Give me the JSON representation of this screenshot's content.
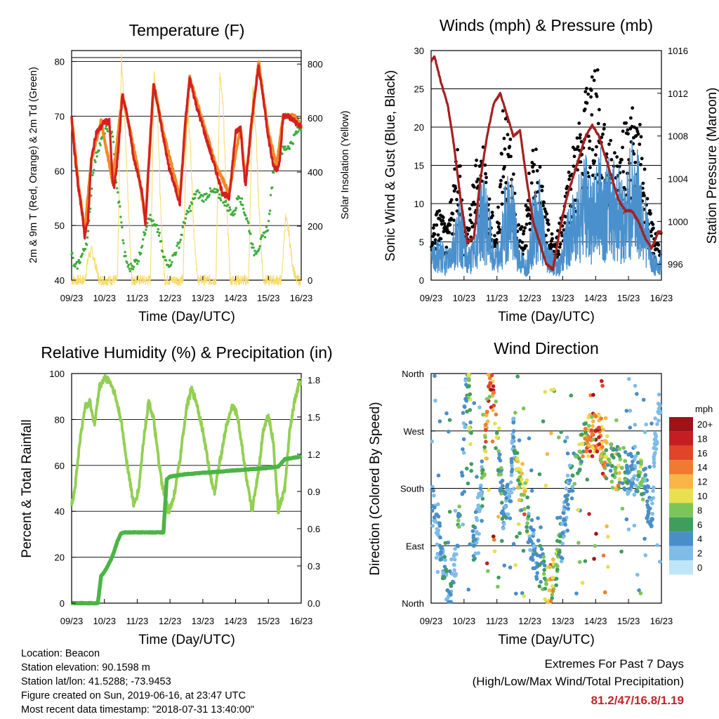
{
  "x_ticks": [
    "09/23",
    "10/23",
    "11/23",
    "12/23",
    "13/23",
    "14/23",
    "15/23",
    "16/23"
  ],
  "panels": {
    "temperature": {
      "title": "Temperature (F)",
      "xlabel": "Time (Day/UTC)",
      "ylabel_left": "2m & 9m T (Red, Orange) & 2m Td (Green)",
      "ylabel_right": "Solar Insolation (Yellow)",
      "left_ticks": [
        "40",
        "50",
        "60",
        "70",
        "80"
      ],
      "right_ticks": [
        "0",
        "200",
        "400",
        "600",
        "800"
      ]
    },
    "winds": {
      "title": "Winds (mph) & Pressure (mb)",
      "xlabel": "Time (Day/UTC)",
      "ylabel_left": "Sonic Wind & Gust (Blue, Black)",
      "ylabel_right": "Station Pressure (Maroon)",
      "left_ticks": [
        "0",
        "5",
        "10",
        "15",
        "20",
        "25",
        "30"
      ],
      "right_ticks": [
        "996",
        "1000",
        "1004",
        "1008",
        "1012",
        "1016"
      ]
    },
    "humidity": {
      "title": "Relative Humidity (%) & Precipitation (in)",
      "xlabel": "Time (Day/UTC)",
      "ylabel_left": "Percent & Total Rainfall",
      "left_ticks": [
        "0",
        "20",
        "40",
        "60",
        "80",
        "100"
      ],
      "right_ticks": [
        "0.0",
        "0.3",
        "0.6",
        "0.9",
        "1.2",
        "1.5",
        "1.8"
      ]
    },
    "direction": {
      "title": "Wind Direction",
      "xlabel": "Time (Day/UTC)",
      "ylabel_left": "Direction (Colored By Speed)",
      "left_ticks": [
        "North",
        "East",
        "South",
        "West",
        "North"
      ],
      "colorbar_title": "mph",
      "colorbar_labels": [
        "20+",
        "18",
        "16",
        "14",
        "12",
        "10",
        "8",
        "6",
        "4",
        "2",
        "0"
      ]
    }
  },
  "colors": {
    "temp_2m": "#d42020",
    "temp_9m": "#f08a28",
    "dewpoint": "#3cad3a",
    "solar": "#f7dc6e",
    "wind": "#4a90cc",
    "gust": "#000000",
    "pressure": "#a52020",
    "rh": "#93cf53",
    "precip": "#4bb446",
    "speed_scale": [
      "#bfe6f7",
      "#7fbde6",
      "#4a8ec8",
      "#3f9d5e",
      "#7cc55a",
      "#e8e04e",
      "#f7b646",
      "#f07a30",
      "#e0452a",
      "#c41d22",
      "#9c1418"
    ]
  },
  "chart_data": [
    {
      "type": "line",
      "title": "Temperature (F)",
      "xlabel": "Time (Day/UTC)",
      "ylabel": "2m & 9m T (Red, Orange) & 2m Td (Green)",
      "y2label": "Solar Insolation (Yellow)",
      "categories": [
        "09/23",
        "10/23",
        "11/23",
        "12/23",
        "13/23",
        "14/23",
        "15/23",
        "16/23"
      ],
      "ylim": [
        40,
        82
      ],
      "y2lim": [
        0,
        850
      ],
      "series": [
        {
          "name": "2m T (Red)",
          "axis": "left",
          "x": [
            0,
            0.08,
            0.2,
            0.33,
            0.4,
            0.5,
            0.6,
            0.75,
            0.9,
            1.0,
            1.15,
            1.25,
            1.3,
            1.4,
            1.55,
            1.7,
            1.8,
            1.9,
            2.0,
            2.15,
            2.25,
            2.35,
            2.5,
            2.65,
            2.8,
            2.95,
            3.15,
            3.3,
            3.45,
            3.6,
            3.8,
            4.0,
            4.2,
            4.4,
            4.6,
            4.8,
            5.0,
            5.15,
            5.3,
            5.5,
            5.7,
            5.85,
            6.0,
            6.15,
            6.25,
            6.35,
            6.45,
            6.6,
            6.8,
            7.0
          ],
          "y": [
            70,
            64,
            57,
            52,
            48,
            51,
            62,
            67,
            68,
            69,
            69,
            58,
            57,
            62,
            74,
            70,
            66,
            62,
            60,
            56,
            50,
            61,
            76,
            71,
            66,
            61,
            57,
            54,
            68,
            77,
            72,
            68,
            64,
            60,
            56,
            55,
            67,
            68,
            57,
            70,
            79,
            73,
            66,
            61,
            60,
            62,
            70,
            70,
            69,
            68
          ]
        },
        {
          "name": "9m T (Orange)",
          "axis": "left",
          "x": [
            0,
            0.2,
            0.4,
            0.6,
            0.9,
            1.25,
            1.55,
            1.8,
            2.0,
            2.25,
            2.5,
            2.8,
            3.3,
            3.6,
            4.0,
            4.4,
            4.8,
            5.15,
            5.3,
            5.7,
            6.0,
            6.25,
            6.45,
            6.8,
            7.0
          ],
          "y": [
            70,
            58,
            49,
            62,
            69,
            58,
            74,
            67,
            61,
            51,
            76,
            67,
            55,
            77,
            69,
            61,
            56,
            68,
            58,
            80,
            67,
            61,
            70,
            70,
            68
          ]
        },
        {
          "name": "2m Td (Green)",
          "axis": "left",
          "x": [
            0,
            0.1,
            0.2,
            0.35,
            0.5,
            0.65,
            0.8,
            0.95,
            1.1,
            1.25,
            1.35,
            1.5,
            1.6,
            1.75,
            1.9,
            2.05,
            2.2,
            2.35,
            2.5,
            2.65,
            2.8,
            3.0,
            3.15,
            3.3,
            3.45,
            3.6,
            3.8,
            4.0,
            4.2,
            4.4,
            4.6,
            4.8,
            4.95,
            5.1,
            5.25,
            5.4,
            5.55,
            5.7,
            5.85,
            6.0,
            6.15,
            6.3,
            6.5,
            6.7,
            6.85,
            7.0
          ],
          "y": [
            45,
            42,
            43,
            45,
            48,
            60,
            64,
            66,
            68,
            67,
            58,
            52,
            45,
            42,
            43,
            44,
            48,
            52,
            50,
            49,
            44,
            43,
            45,
            47,
            51,
            53,
            56,
            55,
            56,
            56,
            55,
            53,
            52,
            56,
            53,
            50,
            45,
            46,
            48,
            50,
            60,
            63,
            64,
            65,
            67,
            68
          ]
        },
        {
          "name": "Solar Insolation (Yellow)",
          "axis": "right",
          "x": [
            0,
            0.4,
            0.52,
            0.62,
            0.72,
            0.84,
            1.4,
            1.52,
            1.62,
            1.72,
            1.84,
            2.4,
            2.52,
            2.62,
            2.72,
            2.84,
            3.4,
            3.52,
            3.62,
            3.72,
            3.84,
            4.4,
            4.52,
            4.62,
            4.72,
            4.84,
            5.4,
            5.52,
            5.62,
            5.72,
            5.84,
            6.4,
            6.52,
            6.62,
            6.72,
            6.84,
            7.0
          ],
          "y": [
            0,
            0,
            90,
            110,
            60,
            0,
            0,
            820,
            600,
            300,
            0,
            0,
            780,
            620,
            240,
            0,
            0,
            650,
            500,
            200,
            0,
            0,
            760,
            640,
            300,
            0,
            0,
            720,
            540,
            250,
            0,
            0,
            230,
            180,
            70,
            0,
            0
          ]
        }
      ]
    },
    {
      "type": "line",
      "title": "Winds (mph) & Pressure (mb)",
      "xlabel": "Time (Day/UTC)",
      "ylabel": "Sonic Wind & Gust (Blue, Black)",
      "y2label": "Station Pressure (Maroon)",
      "categories": [
        "09/23",
        "10/23",
        "11/23",
        "12/23",
        "13/23",
        "14/23",
        "15/23",
        "16/23"
      ],
      "ylim": [
        0,
        30
      ],
      "y2lim": [
        994.5,
        1016
      ],
      "series": [
        {
          "name": "Sonic Wind (Blue)",
          "axis": "left",
          "x": [
            0,
            0.25,
            0.5,
            0.7,
            0.9,
            1.1,
            1.3,
            1.5,
            1.7,
            1.9,
            2.1,
            2.3,
            2.5,
            2.7,
            2.9,
            3.1,
            3.3,
            3.5,
            3.7,
            3.9,
            4.1,
            4.3,
            4.5,
            4.7,
            4.9,
            5.1,
            5.3,
            5.5,
            5.7,
            5.9,
            6.1,
            6.3,
            6.5,
            6.7,
            6.9,
            7.0
          ],
          "y": [
            3,
            4,
            3,
            6,
            8,
            3,
            4,
            10,
            9,
            3,
            4,
            11,
            9,
            3,
            2,
            8,
            10,
            4,
            3,
            2,
            6,
            8,
            11,
            12,
            9,
            13,
            11,
            12,
            11,
            9,
            14,
            12,
            9,
            3,
            2,
            3
          ]
        },
        {
          "name": "Gust (Black)",
          "axis": "left",
          "x": [
            0,
            0.25,
            0.5,
            0.7,
            0.85,
            1.0,
            1.2,
            1.4,
            1.6,
            1.8,
            2.0,
            2.2,
            2.4,
            2.6,
            2.8,
            3.0,
            3.2,
            3.4,
            3.6,
            3.8,
            4.0,
            4.2,
            4.4,
            4.6,
            4.8,
            5.0,
            5.2,
            5.4,
            5.6,
            5.8,
            6.0,
            6.2,
            6.4,
            6.6,
            6.8,
            7.0
          ],
          "y": [
            7,
            9,
            6,
            14,
            18,
            6,
            9,
            16,
            17,
            9,
            6,
            24,
            18,
            8,
            6,
            14,
            17,
            11,
            6,
            5,
            10,
            14,
            18,
            21,
            25,
            28,
            19,
            18,
            15,
            17,
            22,
            20,
            18,
            9,
            6,
            7
          ]
        },
        {
          "name": "Station Pressure (Maroon)",
          "axis": "right",
          "x": [
            0,
            0.1,
            0.3,
            0.5,
            0.7,
            0.9,
            1.1,
            1.3,
            1.5,
            1.7,
            1.9,
            2.1,
            2.3,
            2.5,
            2.7,
            2.9,
            3.1,
            3.3,
            3.5,
            3.7,
            3.9,
            4.1,
            4.3,
            4.5,
            4.7,
            4.9,
            5.1,
            5.3,
            5.5,
            5.7,
            5.9,
            6.1,
            6.3,
            6.5,
            6.7,
            6.9,
            7.0
          ],
          "y": [
            1015,
            1015.5,
            1013,
            1011,
            1007,
            1002,
            998,
            998.5,
            1004,
            1008,
            1011,
            1012,
            1010,
            1008,
            1008.5,
            1004,
            1000,
            998,
            996,
            995.5,
            999,
            1002,
            1004,
            1006,
            1008,
            1009,
            1008,
            1006,
            1004,
            1002,
            1001,
            1001,
            1000,
            998.5,
            997.5,
            999,
            999
          ]
        }
      ]
    },
    {
      "type": "line",
      "title": "Relative Humidity (%) & Precipitation (in)",
      "xlabel": "Time (Day/UTC)",
      "ylabel": "Percent & Total Rainfall",
      "categories": [
        "09/23",
        "10/23",
        "11/23",
        "12/23",
        "13/23",
        "14/23",
        "15/23",
        "16/23"
      ],
      "ylim": [
        0,
        100
      ],
      "y2lim": [
        0,
        1.85
      ],
      "series": [
        {
          "name": "Relative Humidity",
          "axis": "left",
          "x": [
            0,
            0.1,
            0.25,
            0.4,
            0.55,
            0.7,
            0.85,
            1.0,
            1.15,
            1.3,
            1.5,
            1.7,
            1.9,
            2.05,
            2.2,
            2.35,
            2.5,
            2.6,
            2.75,
            2.95,
            3.1,
            3.3,
            3.5,
            3.65,
            3.8,
            4.0,
            4.2,
            4.35,
            4.5,
            4.7,
            4.9,
            5.05,
            5.2,
            5.35,
            5.5,
            5.7,
            5.85,
            6.0,
            6.15,
            6.3,
            6.5,
            6.65,
            6.8,
            6.95,
            7.0
          ],
          "y": [
            43,
            50,
            70,
            85,
            88,
            78,
            94,
            98,
            97,
            92,
            80,
            60,
            42,
            50,
            72,
            88,
            80,
            68,
            52,
            40,
            45,
            62,
            85,
            93,
            88,
            75,
            58,
            48,
            60,
            76,
            86,
            82,
            68,
            52,
            40,
            58,
            76,
            82,
            70,
            40,
            50,
            75,
            88,
            96,
            97
          ]
        },
        {
          "name": "Total Precipitation",
          "axis": "right",
          "x": [
            0,
            0.8,
            0.9,
            1.0,
            1.1,
            1.2,
            1.3,
            1.4,
            1.5,
            1.6,
            2.0,
            2.5,
            2.8,
            2.9,
            3.0,
            3.5,
            4.0,
            4.5,
            5.0,
            5.5,
            6.0,
            6.3,
            6.5,
            7.0
          ],
          "y": [
            0.0,
            0.0,
            0.22,
            0.25,
            0.3,
            0.35,
            0.42,
            0.5,
            0.56,
            0.57,
            0.57,
            0.57,
            0.57,
            1.0,
            1.02,
            1.04,
            1.05,
            1.06,
            1.07,
            1.08,
            1.09,
            1.1,
            1.16,
            1.18
          ]
        }
      ]
    },
    {
      "type": "scatter",
      "title": "Wind Direction",
      "xlabel": "Time (Day/UTC)",
      "ylabel": "Direction (Colored By Speed)",
      "categories": [
        "09/23",
        "10/23",
        "11/23",
        "12/23",
        "13/23",
        "14/23",
        "15/23",
        "16/23"
      ],
      "ylim": [
        0,
        360
      ],
      "color_by": "Speed (mph)",
      "x": [
        0.1,
        0.2,
        0.3,
        0.4,
        0.5,
        0.6,
        0.7,
        0.8,
        0.85,
        0.95,
        1.05,
        1.15,
        1.3,
        1.45,
        1.6,
        1.7,
        1.75,
        1.8,
        1.9,
        2.0,
        2.2,
        2.4,
        2.5,
        2.6,
        2.75,
        2.85,
        3.0,
        3.3,
        3.5,
        3.6,
        3.7,
        3.8,
        3.9,
        4.0,
        4.1,
        4.3,
        4.4,
        4.6,
        4.8,
        4.9,
        5.0,
        5.1,
        5.2,
        5.3,
        5.4,
        5.5,
        5.6,
        5.7,
        5.8,
        5.9,
        6.0,
        6.1,
        6.2,
        6.3,
        6.4,
        6.5,
        6.6,
        6.7,
        6.8,
        6.9
      ],
      "y": [
        150,
        110,
        80,
        40,
        20,
        30,
        60,
        90,
        120,
        200,
        320,
        350,
        90,
        150,
        200,
        300,
        340,
        345,
        330,
        260,
        140,
        160,
        260,
        210,
        170,
        175,
        100,
        60,
        30,
        20,
        40,
        60,
        80,
        110,
        160,
        200,
        230,
        250,
        260,
        265,
        270,
        275,
        245,
        230,
        225,
        215,
        210,
        215,
        212,
        205,
        205,
        210,
        215,
        200,
        190,
        180,
        150,
        130,
        250,
        300
      ],
      "speed": [
        3,
        2,
        4,
        6,
        3,
        5,
        2,
        3,
        8,
        4,
        3,
        8,
        4,
        2,
        8,
        14,
        15,
        16,
        14,
        10,
        4,
        3,
        3,
        10,
        8,
        12,
        3,
        5,
        8,
        12,
        10,
        8,
        6,
        3,
        4,
        5,
        7,
        10,
        14,
        14,
        18,
        16,
        13,
        10,
        8,
        6,
        8,
        10,
        8,
        6,
        3,
        4,
        2,
        6,
        8,
        3,
        4,
        3,
        2,
        2
      ]
    }
  ],
  "info": {
    "location": "Location: Beacon",
    "elevation": "Station elevation: 90.1598 m",
    "latlon": "Station lat/lon: 41.5288; -73.9453",
    "created": "Figure created on Sun, 2019-06-16, at 23:47 UTC",
    "recent": "Most recent data timestamp: \"2018-07-31 13:40:00\""
  },
  "extremes": {
    "title": "Extremes For Past 7 Days",
    "subtitle": "(High/Low/Max Wind/Total Precipitation)",
    "values": "81.2/47/16.8/1.19"
  }
}
